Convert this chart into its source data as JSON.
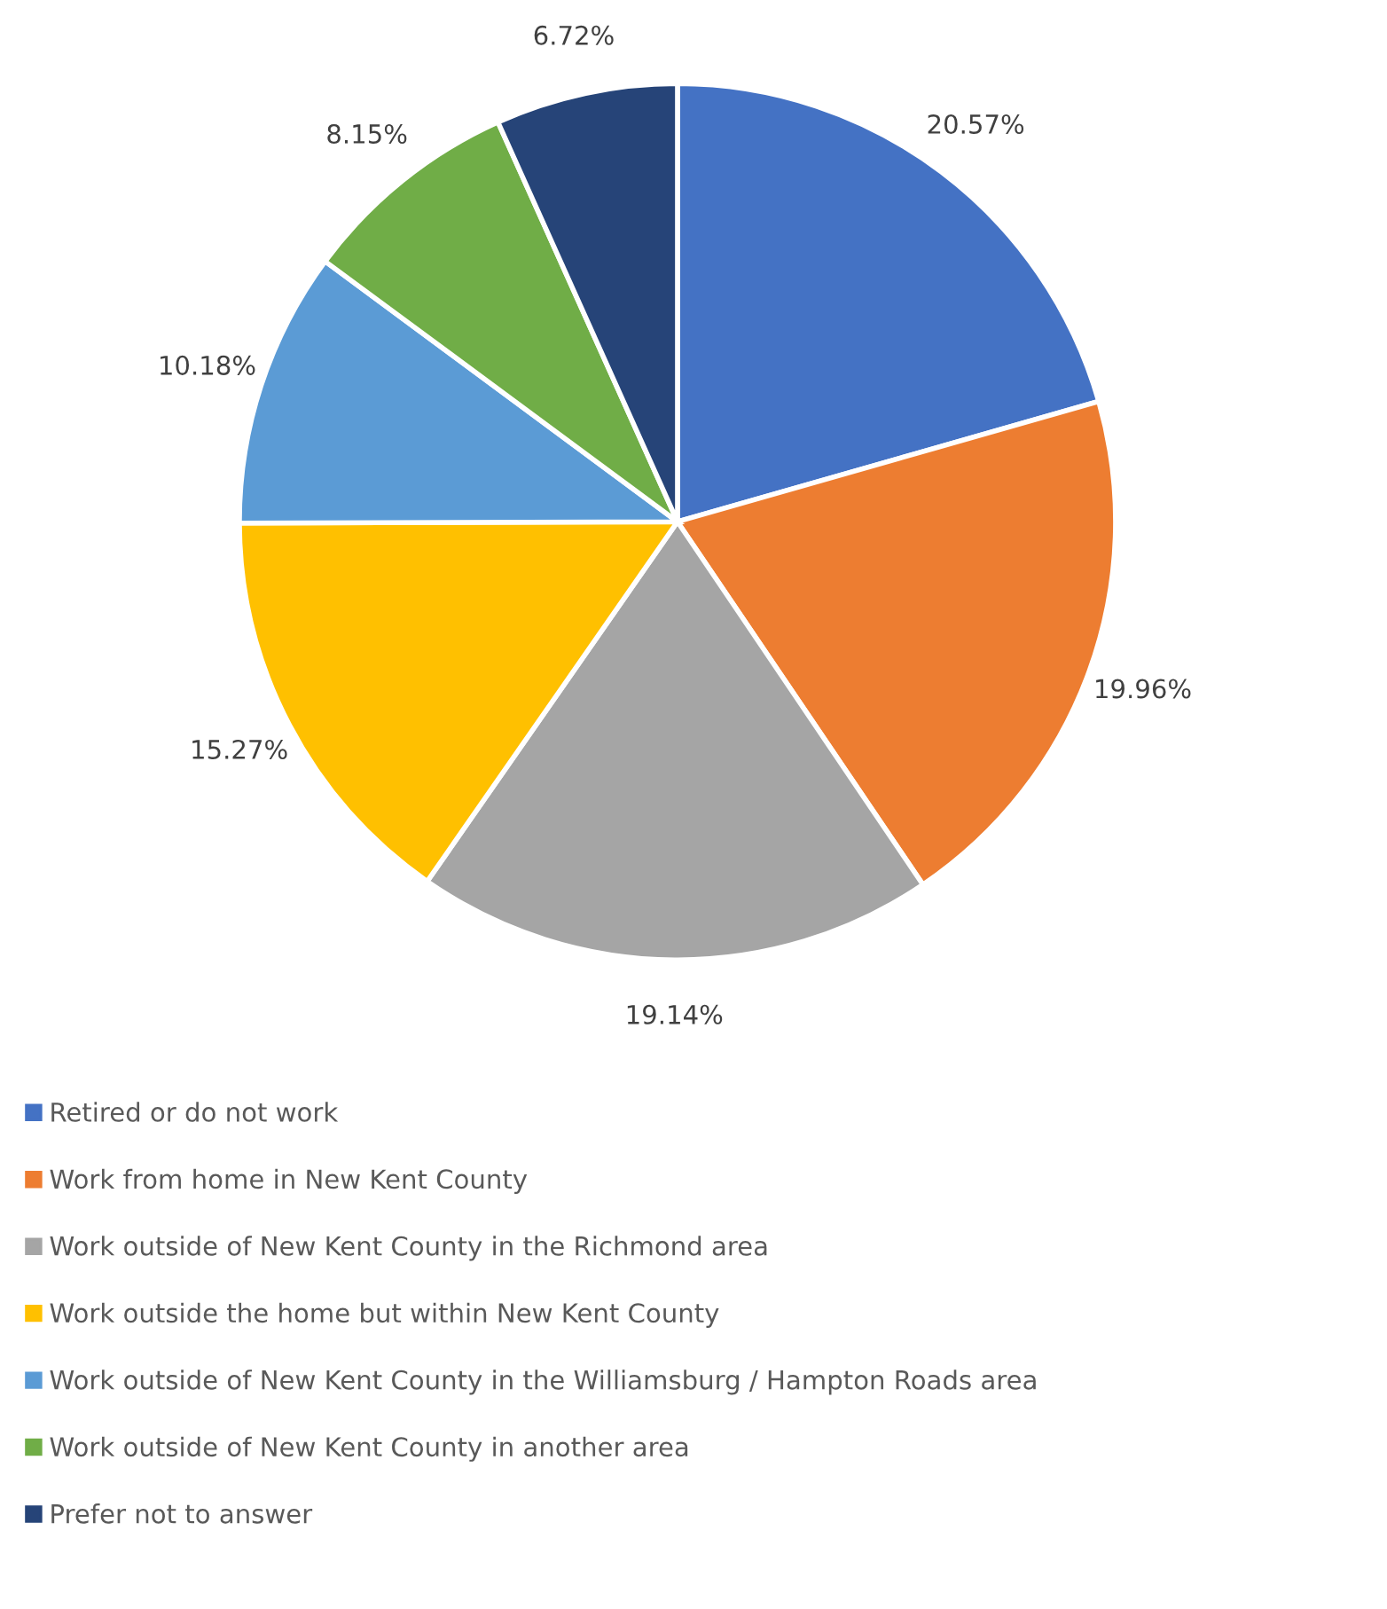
{
  "chart_data": {
    "type": "pie",
    "categories": [
      "Retired or do not work",
      "Work from home in New Kent County",
      "Work outside of New Kent County in the Richmond area",
      "Work outside the home but within New Kent County",
      "Work outside of New Kent County in the Williamsburg / Hampton Roads area",
      "Work outside of New Kent County in another area",
      "Prefer not to answer"
    ],
    "values": [
      20.57,
      19.96,
      19.14,
      15.27,
      10.18,
      8.15,
      6.72
    ],
    "value_labels": [
      "20.57%",
      "19.96%",
      "19.14%",
      "15.27%",
      "10.18%",
      "8.15%",
      "6.72%"
    ],
    "colors": [
      "#4472c4",
      "#ed7d31",
      "#a5a5a5",
      "#ffc000",
      "#5b9bd5",
      "#70ad47",
      "#264478"
    ],
    "legend": "bottom"
  }
}
